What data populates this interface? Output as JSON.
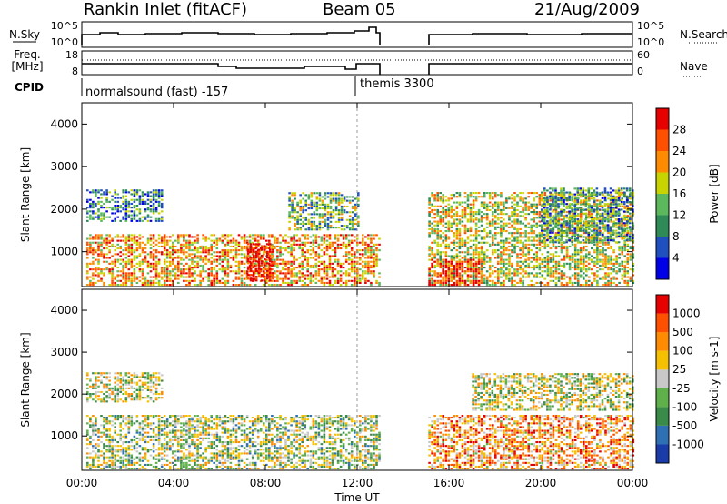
{
  "header": {
    "station": "Rankin Inlet (fitACF)",
    "beam": "Beam 05",
    "date": "21/Aug/2009"
  },
  "left_labels": {
    "nsky": "N.Sky",
    "freq_line1": "Freq.",
    "freq_line2": "[MHz]",
    "cpid": "CPID"
  },
  "right_labels": {
    "nsearch": "N.Search",
    "nave": "Nave"
  },
  "noise_axis": {
    "ticks_left": [
      "10^5",
      "10^0"
    ],
    "ticks_right": [
      "10^5",
      "10^0"
    ]
  },
  "freq_axis": {
    "ticks_left": [
      "18",
      "8"
    ],
    "ticks_right": [
      "60",
      "0"
    ]
  },
  "cpid_panel": {
    "modes": [
      {
        "label": "normalsound (fast) -157",
        "start_hour": 0
      },
      {
        "label": "themis 3300",
        "start_hour": 12.0
      }
    ]
  },
  "time_axis": {
    "ticks": [
      "00:00",
      "04:00",
      "08:00",
      "12:00",
      "16:00",
      "20:00",
      "00:00"
    ],
    "label": "Time UT"
  },
  "chart_data": [
    {
      "type": "heatmap",
      "panel": "power",
      "ylabel": "Slant Range [km]",
      "yticks": [
        1000,
        2000,
        3000,
        4000
      ],
      "ylim": [
        180,
        4500
      ],
      "xlim_hours": [
        0,
        24
      ],
      "data_gap_hours": [
        13.0,
        15.1
      ],
      "colorbar": {
        "label": "Power [dB]",
        "ticks": [
          "4",
          "8",
          "12",
          "16",
          "20",
          "24",
          "28"
        ],
        "colors": [
          "#0000e6",
          "#2050c0",
          "#2e8b57",
          "#5cb85c",
          "#c8d400",
          "#ff8c00",
          "#ff5000",
          "#e60000"
        ]
      },
      "regions": [
        {
          "t": [
            0.2,
            13.0
          ],
          "r": [
            200,
            1400
          ],
          "level": 0.7
        },
        {
          "t": [
            0.2,
            3.5
          ],
          "r": [
            1700,
            2450
          ],
          "level": 0.3
        },
        {
          "t": [
            7.2,
            8.3
          ],
          "r": [
            300,
            1200
          ],
          "level": 0.95
        },
        {
          "t": [
            9.0,
            12.0
          ],
          "r": [
            1500,
            2400
          ],
          "level": 0.4
        },
        {
          "t": [
            15.1,
            24.0
          ],
          "r": [
            200,
            2400
          ],
          "level": 0.55
        },
        {
          "t": [
            15.1,
            17.5
          ],
          "r": [
            200,
            800
          ],
          "level": 0.9
        },
        {
          "t": [
            20.0,
            24.0
          ],
          "r": [
            1200,
            2500
          ],
          "level": 0.35
        }
      ]
    },
    {
      "type": "heatmap",
      "panel": "velocity",
      "ylabel": "Slant Range [km]",
      "yticks": [
        1000,
        2000,
        3000,
        4000
      ],
      "ylim": [
        180,
        4500
      ],
      "xlim_hours": [
        0,
        24
      ],
      "data_gap_hours": [
        13.0,
        15.1
      ],
      "colorbar": {
        "label": "Velocity [m s-1]",
        "ticks": [
          "1000",
          "500",
          "100",
          "25",
          "-25",
          "-100",
          "-500",
          "-1000"
        ],
        "colors": [
          "#1a3ca8",
          "#2f6fb3",
          "#3a8a4a",
          "#5fb04a",
          "#c8c8c8",
          "#f5c000",
          "#ff8c00",
          "#ff5000",
          "#e60000"
        ]
      },
      "regions": [
        {
          "t": [
            0.2,
            13.0
          ],
          "r": [
            200,
            1500
          ],
          "level": 0.45
        },
        {
          "t": [
            0.2,
            3.5
          ],
          "r": [
            1800,
            2500
          ],
          "level": 0.5
        },
        {
          "t": [
            15.1,
            24.0
          ],
          "r": [
            200,
            1500
          ],
          "level": 0.7
        },
        {
          "t": [
            17.0,
            24.0
          ],
          "r": [
            1600,
            2500
          ],
          "level": 0.5
        }
      ]
    }
  ]
}
